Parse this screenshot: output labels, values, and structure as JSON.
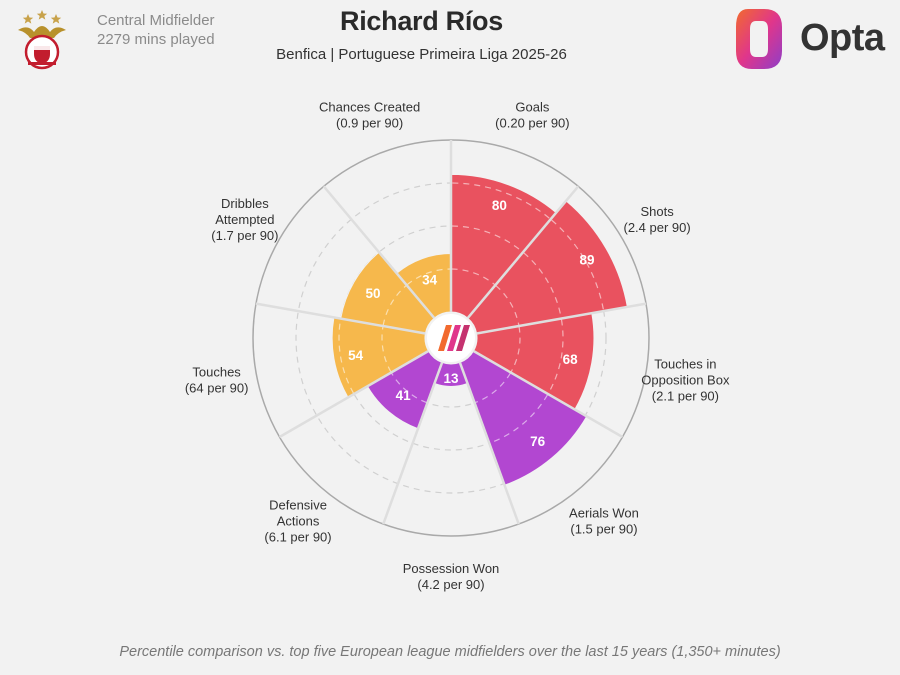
{
  "header": {
    "position": "Central Midfielder",
    "minutes": "2279 mins played",
    "title": "Richard Ríos",
    "subtitle": "Benfica | Portuguese Primeira Liga 2025-26",
    "brand": "Opta"
  },
  "footer": {
    "note": "Percentile comparison vs. top five European league midfielders over the last 15 years (1,350+ minutes)"
  },
  "colors": {
    "attacking": "#e9525f",
    "possession": "#b247d1",
    "defending": "#f6b84c",
    "grid": "#d6d6d6",
    "background": "#f2f2f2"
  },
  "chart_data": {
    "type": "polar-bar",
    "scale": [
      0,
      100
    ],
    "categories": [
      {
        "name": "Goals",
        "sub": "(0.20 per 90)",
        "value": 80,
        "group": "attacking"
      },
      {
        "name": "Shots",
        "sub": "(2.4 per 90)",
        "value": 89,
        "group": "attacking"
      },
      {
        "name": "Touches in\nOpposition Box",
        "sub": "(2.1 per 90)",
        "value": 68,
        "group": "attacking"
      },
      {
        "name": "Aerials Won",
        "sub": "(1.5 per 90)",
        "value": 76,
        "group": "possession"
      },
      {
        "name": "Possession Won",
        "sub": "(4.2 per 90)",
        "value": 13,
        "group": "possession"
      },
      {
        "name": "Defensive\nActions",
        "sub": "(6.1 per 90)",
        "value": 41,
        "group": "possession"
      },
      {
        "name": "Touches",
        "sub": "(64 per 90)",
        "value": 54,
        "group": "defending"
      },
      {
        "name": "Dribbles\nAttempted",
        "sub": "(1.7 per 90)",
        "value": 50,
        "group": "defending"
      },
      {
        "name": "Chances Created",
        "sub": "(0.9 per 90)",
        "value": 34,
        "group": "defending"
      }
    ]
  }
}
